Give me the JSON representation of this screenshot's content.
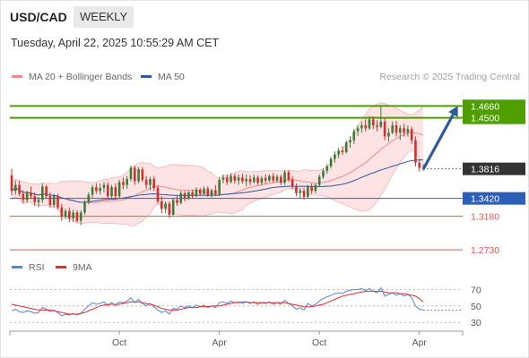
{
  "header": {
    "pair": "USD/CAD",
    "period": "WEEKLY",
    "datetime": "Tuesday, April 22, 2025 10:55:29 AM CET",
    "credit": "Research © 2025 Trading Central"
  },
  "colors": {
    "up": "#3a7d3a",
    "down": "#d1312e",
    "ma20": "#f08a8a",
    "ma50": "#2e5a9c",
    "band_fill": "#fde3e3",
    "resistance": "#4e9e00",
    "support_key": "#2e5fb8",
    "support": "#e05555",
    "last_price": "#333333",
    "rsi": "#5b83d6",
    "rsi_ma": "#e03030",
    "arrow": "#2e5a9c"
  },
  "chart_data": [
    {
      "type": "candlestick",
      "title": "USD/CAD",
      "period": "WEEKLY",
      "legend": [
        "MA 20 + Bollinger Bands",
        "MA 50"
      ],
      "ylim": [
        1.26,
        1.488
      ],
      "x_ticks": [
        {
          "label": "Oct",
          "week": 28
        },
        {
          "label": "Apr",
          "week": 54
        },
        {
          "label": "Oct",
          "week": 80
        },
        {
          "label": "Apr",
          "week": 106
        }
      ],
      "levels": [
        {
          "value": 1.466,
          "label": "1.4660",
          "kind": "resistance"
        },
        {
          "value": 1.45,
          "label": "1.4500",
          "kind": "resistance"
        },
        {
          "value": 1.3816,
          "label": "1.3816",
          "kind": "last"
        },
        {
          "value": 1.342,
          "label": "1.3420",
          "kind": "support_key"
        },
        {
          "value": 1.318,
          "label": "1.3180",
          "kind": "support"
        },
        {
          "value": 1.273,
          "label": "1.2730",
          "kind": "support"
        }
      ],
      "target_arrow": {
        "from_week": 107,
        "from_price": 1.381,
        "to_week": 116,
        "to_price": 1.466
      },
      "ohlc": [
        [
          1.373,
          1.382,
          1.346,
          1.352
        ],
        [
          1.352,
          1.366,
          1.347,
          1.36
        ],
        [
          1.36,
          1.366,
          1.345,
          1.348
        ],
        [
          1.348,
          1.353,
          1.335,
          1.34
        ],
        [
          1.34,
          1.352,
          1.336,
          1.35
        ],
        [
          1.35,
          1.358,
          1.341,
          1.345
        ],
        [
          1.345,
          1.35,
          1.332,
          1.337
        ],
        [
          1.337,
          1.344,
          1.33,
          1.34
        ],
        [
          1.34,
          1.362,
          1.336,
          1.358
        ],
        [
          1.358,
          1.36,
          1.342,
          1.345
        ],
        [
          1.345,
          1.35,
          1.33,
          1.333
        ],
        [
          1.333,
          1.348,
          1.33,
          1.345
        ],
        [
          1.345,
          1.348,
          1.327,
          1.33
        ],
        [
          1.33,
          1.335,
          1.312,
          1.317
        ],
        [
          1.317,
          1.328,
          1.314,
          1.325
        ],
        [
          1.325,
          1.33,
          1.31,
          1.315
        ],
        [
          1.315,
          1.327,
          1.31,
          1.323
        ],
        [
          1.323,
          1.326,
          1.309,
          1.312
        ],
        [
          1.312,
          1.326,
          1.306,
          1.323
        ],
        [
          1.323,
          1.34,
          1.32,
          1.337
        ],
        [
          1.337,
          1.35,
          1.334,
          1.347
        ],
        [
          1.347,
          1.36,
          1.343,
          1.357
        ],
        [
          1.357,
          1.362,
          1.348,
          1.352
        ],
        [
          1.352,
          1.362,
          1.347,
          1.356
        ],
        [
          1.356,
          1.364,
          1.35,
          1.36
        ],
        [
          1.36,
          1.364,
          1.34,
          1.345
        ],
        [
          1.345,
          1.36,
          1.343,
          1.357
        ],
        [
          1.357,
          1.362,
          1.34,
          1.345
        ],
        [
          1.345,
          1.367,
          1.342,
          1.364
        ],
        [
          1.364,
          1.37,
          1.354,
          1.36
        ],
        [
          1.36,
          1.372,
          1.355,
          1.368
        ],
        [
          1.368,
          1.386,
          1.365,
          1.383
        ],
        [
          1.383,
          1.386,
          1.36,
          1.365
        ],
        [
          1.365,
          1.384,
          1.362,
          1.381
        ],
        [
          1.381,
          1.384,
          1.364,
          1.367
        ],
        [
          1.367,
          1.372,
          1.355,
          1.36
        ],
        [
          1.36,
          1.371,
          1.353,
          1.368
        ],
        [
          1.368,
          1.372,
          1.352,
          1.356
        ],
        [
          1.356,
          1.36,
          1.335,
          1.338
        ],
        [
          1.338,
          1.345,
          1.322,
          1.328
        ],
        [
          1.328,
          1.338,
          1.322,
          1.335
        ],
        [
          1.335,
          1.338,
          1.316,
          1.32
        ],
        [
          1.32,
          1.342,
          1.318,
          1.34
        ],
        [
          1.34,
          1.346,
          1.332,
          1.336
        ],
        [
          1.336,
          1.352,
          1.334,
          1.349
        ],
        [
          1.349,
          1.352,
          1.338,
          1.342
        ],
        [
          1.342,
          1.352,
          1.34,
          1.35
        ],
        [
          1.35,
          1.354,
          1.342,
          1.345
        ],
        [
          1.345,
          1.357,
          1.344,
          1.354
        ],
        [
          1.354,
          1.356,
          1.345,
          1.348
        ],
        [
          1.348,
          1.358,
          1.347,
          1.355
        ],
        [
          1.355,
          1.358,
          1.344,
          1.346
        ],
        [
          1.346,
          1.355,
          1.343,
          1.353
        ],
        [
          1.353,
          1.36,
          1.345,
          1.348
        ],
        [
          1.348,
          1.37,
          1.345,
          1.367
        ],
        [
          1.367,
          1.374,
          1.362,
          1.37
        ],
        [
          1.37,
          1.374,
          1.36,
          1.364
        ],
        [
          1.364,
          1.376,
          1.362,
          1.372
        ],
        [
          1.372,
          1.375,
          1.362,
          1.366
        ],
        [
          1.366,
          1.374,
          1.36,
          1.37
        ],
        [
          1.37,
          1.375,
          1.362,
          1.365
        ],
        [
          1.365,
          1.374,
          1.358,
          1.368
        ],
        [
          1.368,
          1.373,
          1.36,
          1.364
        ],
        [
          1.364,
          1.374,
          1.362,
          1.37
        ],
        [
          1.37,
          1.373,
          1.36,
          1.363
        ],
        [
          1.363,
          1.372,
          1.36,
          1.369
        ],
        [
          1.369,
          1.374,
          1.362,
          1.366
        ],
        [
          1.366,
          1.374,
          1.364,
          1.372
        ],
        [
          1.372,
          1.376,
          1.363,
          1.366
        ],
        [
          1.366,
          1.374,
          1.363,
          1.371
        ],
        [
          1.371,
          1.374,
          1.36,
          1.363
        ],
        [
          1.363,
          1.38,
          1.36,
          1.377
        ],
        [
          1.377,
          1.38,
          1.364,
          1.367
        ],
        [
          1.367,
          1.372,
          1.354,
          1.358
        ],
        [
          1.358,
          1.362,
          1.345,
          1.349
        ],
        [
          1.349,
          1.356,
          1.342,
          1.352
        ],
        [
          1.352,
          1.356,
          1.34,
          1.344
        ],
        [
          1.344,
          1.36,
          1.342,
          1.358
        ],
        [
          1.358,
          1.362,
          1.348,
          1.352
        ],
        [
          1.352,
          1.362,
          1.349,
          1.36
        ],
        [
          1.36,
          1.374,
          1.357,
          1.371
        ],
        [
          1.371,
          1.382,
          1.368,
          1.379
        ],
        [
          1.379,
          1.388,
          1.375,
          1.385
        ],
        [
          1.385,
          1.398,
          1.382,
          1.395
        ],
        [
          1.395,
          1.405,
          1.39,
          1.401
        ],
        [
          1.401,
          1.41,
          1.396,
          1.406
        ],
        [
          1.406,
          1.412,
          1.4,
          1.404
        ],
        [
          1.404,
          1.42,
          1.402,
          1.417
        ],
        [
          1.417,
          1.425,
          1.41,
          1.42
        ],
        [
          1.42,
          1.435,
          1.415,
          1.432
        ],
        [
          1.432,
          1.44,
          1.426,
          1.436
        ],
        [
          1.436,
          1.445,
          1.43,
          1.44
        ],
        [
          1.44,
          1.448,
          1.432,
          1.436
        ],
        [
          1.436,
          1.452,
          1.434,
          1.448
        ],
        [
          1.448,
          1.452,
          1.435,
          1.44
        ],
        [
          1.44,
          1.447,
          1.432,
          1.438
        ],
        [
          1.438,
          1.466,
          1.436,
          1.445
        ],
        [
          1.445,
          1.45,
          1.42,
          1.425
        ],
        [
          1.425,
          1.436,
          1.418,
          1.43
        ],
        [
          1.43,
          1.445,
          1.428,
          1.44
        ],
        [
          1.44,
          1.446,
          1.425,
          1.43
        ],
        [
          1.43,
          1.44,
          1.42,
          1.436
        ],
        [
          1.436,
          1.442,
          1.425,
          1.43
        ],
        [
          1.43,
          1.44,
          1.425,
          1.435
        ],
        [
          1.435,
          1.438,
          1.415,
          1.42
        ],
        [
          1.42,
          1.425,
          1.385,
          1.39
        ],
        [
          1.39,
          1.395,
          1.378,
          1.383
        ],
        [
          1.383,
          1.388,
          1.379,
          1.3816
        ]
      ]
    },
    {
      "type": "line",
      "title": "RSI",
      "legend": [
        "RSI",
        "9MA"
      ],
      "ylim": [
        28,
        76
      ],
      "y_ticks": [
        70,
        50,
        30
      ],
      "rsi": [
        44,
        46,
        43,
        42,
        44,
        43,
        41,
        42,
        48,
        46,
        43,
        45,
        42,
        38,
        40,
        39,
        41,
        39,
        41,
        46,
        50,
        54,
        52,
        53,
        55,
        50,
        54,
        50,
        55,
        54,
        56,
        60,
        54,
        58,
        53,
        50,
        53,
        49,
        45,
        42,
        44,
        40,
        47,
        46,
        50,
        48,
        50,
        48,
        51,
        49,
        51,
        48,
        50,
        48,
        54,
        55,
        53,
        56,
        54,
        55,
        53,
        55,
        53,
        55,
        52,
        54,
        53,
        55,
        52,
        54,
        52,
        57,
        53,
        50,
        46,
        48,
        45,
        53,
        50,
        52,
        56,
        59,
        61,
        63,
        65,
        66,
        65,
        68,
        69,
        70,
        70,
        71,
        69,
        71,
        68,
        66,
        72,
        62,
        64,
        66,
        63,
        65,
        62,
        64,
        60,
        50,
        46,
        45
      ],
      "rsi_ma": [
        52,
        51,
        50,
        49,
        48,
        47,
        46,
        45,
        45,
        45,
        45,
        44,
        43,
        42,
        41,
        40,
        40,
        40,
        41,
        42,
        44,
        46,
        48,
        50,
        51,
        52,
        52,
        52,
        52,
        53,
        54,
        55,
        55,
        55,
        54,
        53,
        52,
        51,
        49,
        47,
        46,
        45,
        45,
        45,
        46,
        47,
        48,
        48,
        48,
        49,
        49,
        49,
        50,
        50,
        50,
        51,
        52,
        53,
        54,
        54,
        55,
        55,
        54,
        54,
        54,
        54,
        54,
        54,
        54,
        54,
        54,
        54,
        53,
        52,
        51,
        50,
        49,
        49,
        49,
        50,
        51,
        52,
        54,
        56,
        58,
        60,
        62,
        63,
        64,
        65,
        66,
        67,
        68,
        68,
        68,
        68,
        68,
        67,
        66,
        66,
        66,
        65,
        65,
        64,
        63,
        62,
        59,
        55
      ]
    }
  ]
}
